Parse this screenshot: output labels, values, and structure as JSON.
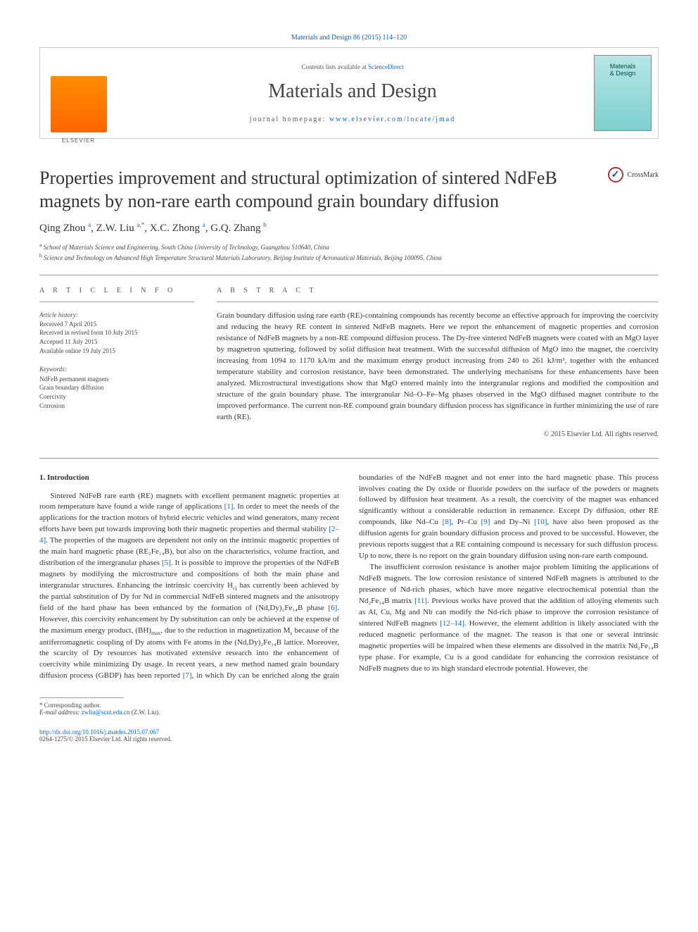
{
  "colors": {
    "link": "#0066cc",
    "text": "#333333",
    "muted": "#555555",
    "rule": "#999999",
    "elsevier_gradient": [
      "#ff8c00",
      "#ff6600"
    ],
    "cover_gradient": [
      "#b8e6e6",
      "#7dcfcf"
    ]
  },
  "citation_line": "Materials and Design 86 (2015) 114–120",
  "header": {
    "contents_prefix": "Contents lists available at ",
    "contents_link": "ScienceDirect",
    "journal": "Materials and Design",
    "homepage_prefix": "journal homepage: ",
    "homepage_link": "www.elsevier.com/locate/jmad",
    "publisher_mark": "ELSEVIER",
    "cover_line1": "Materials",
    "cover_line2": "& Design"
  },
  "crossmark_label": "CrossMark",
  "title": "Properties improvement and structural optimization of sintered NdFeB magnets by non-rare earth compound grain boundary diffusion",
  "authors_html": "Qing Zhou <sup>a</sup>, Z.W. Liu <sup>a,*</sup>, X.C. Zhong <sup>a</sup>, G.Q. Zhang <sup>b</sup>",
  "affiliations": {
    "a": "School of Materials Science and Engineering, South China University of Technology, Guangzhou 510640, China",
    "b": "Science and Technology on Advanced High Temperature Structural Materials Laboratory, Beijing Institute of Aeronautical Materials, Beijing 100095, China"
  },
  "article_info_header": "A R T I C L E   I N F O",
  "abstract_header": "A B S T R A C T",
  "history": {
    "label": "Article history:",
    "received": "Received 7 April 2015",
    "revised": "Received in revised form 10 July 2015",
    "accepted": "Accepted 11 July 2015",
    "online": "Available online 19 July 2015"
  },
  "keywords": {
    "label": "Keywords:",
    "items": [
      "NdFeB permanent magnets",
      "Grain boundary diffusion",
      "Coercivity",
      "Corrosion"
    ]
  },
  "abstract": "Grain boundary diffusion using rare earth (RE)-containing compounds has recently become an effective approach for improving the coercivity and reducing the heavy RE content in sintered NdFeB magnets. Here we report the enhancement of magnetic properties and corrosion resistance of NdFeB magnets by a non-RE compound diffusion process. The Dy-free sintered NdFeB magnets were coated with an MgO layer by magnetron sputtering, followed by solid diffusion heat treatment. With the successful diffusion of MgO into the magnet, the coercivity increasing from 1094 to 1170 kA/m and the maximum energy product increasing from 240 to 261 kJ/m³, together with the enhanced temperature stability and corrosion resistance, have been demonstrated. The underlying mechanisms for these enhancements have been analyzed. Microstructural investigations show that MgO entered mainly into the intergranular regions and modified the composition and structure of the grain boundary phase. The intergranular Nd–O–Fe–Mg phases observed in the MgO diffused magnet contribute to the improved performance. The current non-RE compound grain boundary diffusion process has significance in further minimizing the use of rare earth (RE).",
  "abstract_copyright": "© 2015 Elsevier Ltd. All rights reserved.",
  "section1_heading": "1. Introduction",
  "body": {
    "p1a": "Sintered NdFeB rare earth (RE) magnets with excellent permanent magnetic properties at room temperature have found a wide range of applications ",
    "r1": "[1]",
    "p1b": ". In order to meet the needs of the applications for the traction motors of hybrid electric vehicles and wind generators, many recent efforts have been put towards improving both their magnetic properties and thermal stability ",
    "r2_4": "[2–4]",
    "p1c": ". The properties of the magnets are dependent not only on the intrinsic magnetic properties of the main hard magnetic phase (RE₂Fe₁₄B), but also on the characteristics, volume fraction, and distribution of the intergranular phases ",
    "r5": "[5]",
    "p1d": ". It is possible to improve the properties of the NdFeB magnets by modifying the microstructure and compositions of both the main phase and intergranular structures. Enhancing the intrinsic coercivity H",
    "p1d_sub": "cj",
    "p1e": " has currently been achieved by the partial substitution of Dy for Nd in commercial NdFeB sintered magnets and the anisotropy field of the hard phase has been enhanced by the formation of (Nd,Dy)₂Fe₁₄B phase ",
    "r6": "[6]",
    "p1f": ". However, this coercivity enhancement by Dy substitution can only be achieved at the expense of the maximum energy product, (BH)",
    "p1f_sub": "max",
    "p1g": ", due to the reduction in magnetization M",
    "p1g_sub": "s",
    "p1h": " because of the antiferromagnetic coupling of Dy atoms with Fe atoms in the (Nd,Dy)₂Fe₁₄B lattice. Moreover, the scarcity of Dy resources has motivated extensive research into the enhancement of coercivity while minimizing Dy usage. In recent years, a new method named grain boundary diffusion process (GBDP) has been reported ",
    "r7": "[7]",
    "p1i": ", in which Dy can be enriched along the grain boundaries of the NdFeB magnet and not enter into the hard magnetic phase. This process involves coating the Dy oxide or fluoride powders on the surface of the powders or magnets followed by diffusion heat treatment. As a result, the coercivity of the magnet was enhanced significantly without a considerable reduction in remanence. Except Dy diffusion, other RE compounds, like Nd–Cu ",
    "r8": "[8]",
    "p1j": ", Pr–Cu ",
    "r9": "[9]",
    "p1k": " and Dy–Ni ",
    "r10": "[10]",
    "p1l": ", have also been proposed as the diffusion agents for grain boundary diffusion process and proved to be successful. However, the previous reports suggest that a RE containing compound is necessary for such diffusion process. Up to now, there is no report on the grain boundary diffusion using non-rare earth compound.",
    "p2a": "The insufficient corrosion resistance is another major problem limiting the applications of NdFeB magnets. The low corrosion resistance of sintered NdFeB magnets is attributed to the presence of Nd-rich phases, which have more negative electrochemical potential than the Nd₂Fe₁₄B matrix ",
    "r11": "[11]",
    "p2b": ". Previous works have proved that the addition of alloying elements such as Al, Cu, Mg and Nb can modify the Nd-rich phase to improve the corrosion resistance of sintered NdFeB magnets ",
    "r12_14": "[12–14]",
    "p2c": ". However, the element addition is likely associated with the reduced magnetic performance of the magnet. The reason is that one or several intrinsic magnetic properties will be impaired when these elements are dissolved in the matrix Nd₂Fe₁₄B type phase. For example, Cu is a good candidate for enhancing the corrosion resistance of NdFeB magnets due to its high standard electrode potential. However, the"
  },
  "footer": {
    "corr_marker": "* ",
    "corr_text": "Corresponding author.",
    "email_label": "E-mail address: ",
    "email": "zwliu@scut.edu.cn",
    "email_who": " (Z.W. Liu)."
  },
  "doi": {
    "url": "http://dx.doi.org/10.1016/j.matdes.2015.07.067",
    "issn_line": "0264-1275/© 2015 Elsevier Ltd. All rights reserved."
  }
}
